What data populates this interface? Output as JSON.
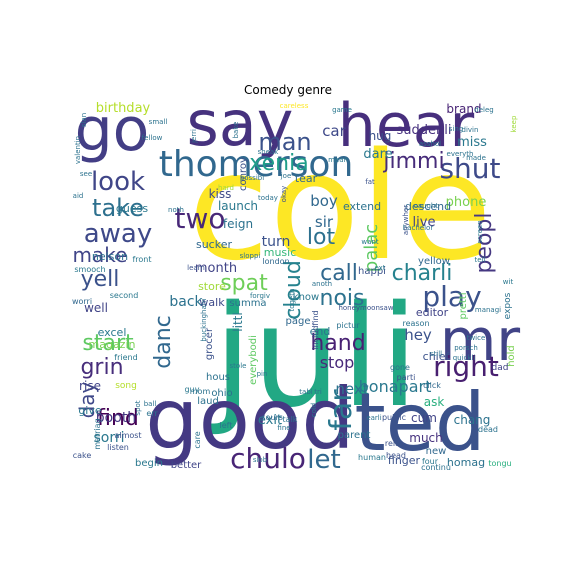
{
  "chart_data": {
    "type": "wordcloud",
    "title": "Comedy genre",
    "words": [
      {
        "text": "cole",
        "weight": 100,
        "color": "#fde725"
      },
      {
        "text": "juli",
        "weight": 96,
        "color": "#22a884"
      },
      {
        "text": "good",
        "weight": 70,
        "color": "#443983"
      },
      {
        "text": "ted",
        "weight": 62,
        "color": "#3b528b"
      },
      {
        "text": "mr",
        "weight": 48,
        "color": "#414487"
      },
      {
        "text": "say",
        "weight": 50,
        "color": "#46327e"
      },
      {
        "text": "hear",
        "weight": 48,
        "color": "#472f7d"
      },
      {
        "text": "go",
        "weight": 46,
        "color": "#433e85"
      },
      {
        "text": "thomerson",
        "weight": 30,
        "color": "#31688e"
      },
      {
        "text": "chulo",
        "weight": 24,
        "color": "#482576"
      },
      {
        "text": "let",
        "weight": 22,
        "color": "#31688e"
      },
      {
        "text": "far",
        "weight": 26,
        "color": "#2a788e"
      },
      {
        "text": "shut",
        "weight": 22,
        "color": "#3e4a89"
      },
      {
        "text": "right",
        "weight": 22,
        "color": "#481f70"
      },
      {
        "text": "play",
        "weight": 22,
        "color": "#3b528b"
      },
      {
        "text": "two",
        "weight": 24,
        "color": "#482878"
      },
      {
        "text": "look",
        "weight": 20,
        "color": "#404688"
      },
      {
        "text": "away",
        "weight": 20,
        "color": "#3e4989"
      },
      {
        "text": "take",
        "weight": 20,
        "color": "#2d708e"
      },
      {
        "text": "man",
        "weight": 20,
        "color": "#3b528b"
      },
      {
        "text": "xenia",
        "weight": 18,
        "color": "#1f9e89"
      },
      {
        "text": "jimmi",
        "weight": 18,
        "color": "#472c7a"
      },
      {
        "text": "peopl",
        "weight": 18,
        "color": "#453781"
      },
      {
        "text": "spat",
        "weight": 18,
        "color": "#6ece58"
      },
      {
        "text": "lot",
        "weight": 18,
        "color": "#2d708e"
      },
      {
        "text": "call",
        "weight": 18,
        "color": "#31688e"
      },
      {
        "text": "charli",
        "weight": 18,
        "color": "#26828e"
      },
      {
        "text": "nois",
        "weight": 18,
        "color": "#2c728e"
      },
      {
        "text": "cloud",
        "weight": 18,
        "color": "#26828e"
      },
      {
        "text": "hand",
        "weight": 18,
        "color": "#482173"
      },
      {
        "text": "danc",
        "weight": 18,
        "color": "#31688e"
      },
      {
        "text": "find",
        "weight": 18,
        "color": "#440154"
      },
      {
        "text": "grin",
        "weight": 18,
        "color": "#472d7b"
      },
      {
        "text": "start",
        "weight": 18,
        "color": "#5ec962"
      },
      {
        "text": "yell",
        "weight": 18,
        "color": "#3b528b"
      },
      {
        "text": "make",
        "weight": 16,
        "color": "#404588"
      },
      {
        "text": "day",
        "weight": 16,
        "color": "#3f4889"
      },
      {
        "text": "palac",
        "weight": 14,
        "color": "#5ec962"
      },
      {
        "text": "bonapart",
        "weight": 13,
        "color": "#2a788e"
      },
      {
        "text": "stop",
        "weight": 13,
        "color": "#482979"
      },
      {
        "text": "next",
        "weight": 13,
        "color": "#2c728e"
      },
      {
        "text": "sorri",
        "weight": 12,
        "color": "#2a788e"
      },
      {
        "text": "booth",
        "weight": 12,
        "color": "#453882"
      },
      {
        "text": "birthday",
        "weight": 11,
        "color": "#b5de2b"
      },
      {
        "text": "car",
        "weight": 12,
        "color": "#3e4989"
      },
      {
        "text": "dare",
        "weight": 11,
        "color": "#2a788e"
      },
      {
        "text": "suddenli",
        "weight": 11,
        "color": "#46307e"
      },
      {
        "text": "brand",
        "weight": 10,
        "color": "#482475"
      },
      {
        "text": "miss",
        "weight": 11,
        "color": "#2a788e"
      },
      {
        "text": "boy",
        "weight": 12,
        "color": "#31688e"
      },
      {
        "text": "sir",
        "weight": 12,
        "color": "#31688e"
      },
      {
        "text": "turn",
        "weight": 12,
        "color": "#3b528b"
      },
      {
        "text": "month",
        "weight": 11,
        "color": "#414487"
      },
      {
        "text": "phone",
        "weight": 11,
        "color": "#7ad151"
      },
      {
        "text": "live",
        "weight": 11,
        "color": "#414487"
      },
      {
        "text": "hey",
        "weight": 13,
        "color": "#3b528b"
      },
      {
        "text": "back",
        "weight": 12,
        "color": "#2c728e"
      },
      {
        "text": "ask",
        "weight": 10,
        "color": "#29af7f"
      },
      {
        "text": "cum",
        "weight": 10,
        "color": "#414487"
      },
      {
        "text": "much",
        "weight": 10,
        "color": "#46327e"
      },
      {
        "text": "exit",
        "weight": 11,
        "color": "#2a788e"
      },
      {
        "text": "chang",
        "weight": 10,
        "color": "#2c728e"
      },
      {
        "text": "hug",
        "weight": 10,
        "color": "#3b528b"
      },
      {
        "text": "launch",
        "weight": 10,
        "color": "#2a788e"
      },
      {
        "text": "kiss",
        "weight": 10,
        "color": "#3e4a89"
      },
      {
        "text": "tear",
        "weight": 9,
        "color": "#31688e"
      },
      {
        "text": "guess",
        "weight": 9,
        "color": "#2a788e"
      },
      {
        "text": "feign",
        "weight": 10,
        "color": "#2c728e"
      },
      {
        "text": "extend",
        "weight": 9,
        "color": "#2c728e"
      },
      {
        "text": "descend",
        "weight": 9,
        "color": "#31688e"
      },
      {
        "text": "nelson",
        "weight": 9,
        "color": "#2c728e"
      },
      {
        "text": "sucker",
        "weight": 9,
        "color": "#31688e"
      },
      {
        "text": "music",
        "weight": 8,
        "color": "#35b779"
      },
      {
        "text": "well",
        "weight": 10,
        "color": "#414487"
      },
      {
        "text": "excel",
        "weight": 9,
        "color": "#2a788e"
      },
      {
        "text": "store",
        "weight": 9,
        "color": "#a0da39"
      },
      {
        "text": "walk",
        "weight": 9,
        "color": "#3e4a89"
      },
      {
        "text": "summa",
        "weight": 8,
        "color": "#2c728e"
      },
      {
        "text": "page",
        "weight": 8,
        "color": "#31688e"
      },
      {
        "text": "know",
        "weight": 9,
        "color": "#2a788e"
      },
      {
        "text": "end",
        "weight": 9,
        "color": "#2c728e"
      },
      {
        "text": "editor",
        "weight": 9,
        "color": "#414487"
      },
      {
        "text": "chief",
        "weight": 9,
        "color": "#3b528b"
      },
      {
        "text": "rise",
        "weight": 10,
        "color": "#414487"
      },
      {
        "text": "magazin",
        "weight": 9,
        "color": "#7ad151"
      },
      {
        "text": "give",
        "weight": 9,
        "color": "#2a788e"
      },
      {
        "text": "laud",
        "weight": 8,
        "color": "#2c728e"
      },
      {
        "text": "hous",
        "weight": 8,
        "color": "#2c728e"
      },
      {
        "text": "ohio",
        "weight": 8,
        "color": "#2c728e"
      },
      {
        "text": "begin",
        "weight": 8,
        "color": "#2a788e"
      },
      {
        "text": "better",
        "weight": 8,
        "color": "#404588"
      },
      {
        "text": "finger",
        "weight": 9,
        "color": "#3b528b"
      },
      {
        "text": "homag",
        "weight": 9,
        "color": "#2c728e"
      },
      {
        "text": "new",
        "weight": 8,
        "color": "#31688e"
      },
      {
        "text": "parent",
        "weight": 8,
        "color": "#2c728e"
      },
      {
        "text": "yellow",
        "weight": 8,
        "color": "#31688e"
      },
      {
        "text": "littl",
        "weight": 10,
        "color": "#2a788e"
      },
      {
        "text": "everybodi",
        "weight": 8,
        "color": "#5ec962"
      },
      {
        "text": "grocer",
        "weight": 8,
        "color": "#3b528b"
      },
      {
        "text": "happi",
        "weight": 8,
        "color": "#3b528b"
      },
      {
        "text": "pretti",
        "weight": 8,
        "color": "#5ec962"
      },
      {
        "text": "hold",
        "weight": 8,
        "color": "#7ad151"
      },
      {
        "text": "expos",
        "weight": 7,
        "color": "#2c728e"
      },
      {
        "text": "conroy",
        "weight": 8,
        "color": "#3b528b"
      },
      {
        "text": "song",
        "weight": 7,
        "color": "#b5de2b"
      },
      {
        "text": "dad",
        "weight": 7,
        "color": "#414487"
      },
      {
        "text": "london",
        "weight": 6,
        "color": "#31688e"
      },
      {
        "text": "front",
        "weight": 6,
        "color": "#2a788e"
      },
      {
        "text": "smooch",
        "weight": 6,
        "color": "#2a788e"
      },
      {
        "text": "second",
        "weight": 6,
        "color": "#2a788e"
      },
      {
        "text": "worri",
        "weight": 6,
        "color": "#31688e"
      },
      {
        "text": "friend",
        "weight": 6,
        "color": "#2a788e"
      },
      {
        "text": "listen",
        "weight": 6,
        "color": "#3b528b"
      },
      {
        "text": "almost",
        "weight": 6,
        "color": "#3b528b"
      },
      {
        "text": "marriag",
        "weight": 6,
        "color": "#2c728e"
      },
      {
        "text": "cake",
        "weight": 6,
        "color": "#3b528b"
      },
      {
        "text": "err",
        "weight": 6,
        "color": "#2c728e"
      },
      {
        "text": "guy",
        "weight": 6,
        "color": "#2a788e"
      },
      {
        "text": "mom",
        "weight": 6,
        "color": "#2c728e"
      },
      {
        "text": "care",
        "weight": 6,
        "color": "#2c728e"
      },
      {
        "text": "left",
        "weight": 6,
        "color": "#2c728e"
      },
      {
        "text": "talk",
        "weight": 6,
        "color": "#2c728e"
      },
      {
        "text": "cours",
        "weight": 6,
        "color": "#31688e"
      },
      {
        "text": "public",
        "weight": 6,
        "color": "#3b528b"
      },
      {
        "text": "relat",
        "weight": 6,
        "color": "#3b528b"
      },
      {
        "text": "dead",
        "weight": 6,
        "color": "#2c728e"
      },
      {
        "text": "four",
        "weight": 6,
        "color": "#2a788e"
      },
      {
        "text": "tongu",
        "weight": 6,
        "color": "#29af7f"
      },
      {
        "text": "continu",
        "weight": 6,
        "color": "#2c728e"
      },
      {
        "text": "head",
        "weight": 6,
        "color": "#3b528b"
      },
      {
        "text": "gone",
        "weight": 6,
        "color": "#2c728e"
      },
      {
        "text": "click",
        "weight": 6,
        "color": "#31688e"
      },
      {
        "text": "reason",
        "weight": 6,
        "color": "#2c728e"
      },
      {
        "text": "parti",
        "weight": 6,
        "color": "#3b528b"
      },
      {
        "text": "human",
        "weight": 6,
        "color": "#2a788e"
      },
      {
        "text": "pictur",
        "weight": 6,
        "color": "#2c728e"
      },
      {
        "text": "includfind",
        "weight": 6,
        "color": "#3b528b"
      },
      {
        "text": "honeymoonsaw",
        "weight": 5,
        "color": "#3b528b"
      },
      {
        "text": "togeth",
        "weight": 5,
        "color": "#2a788e"
      },
      {
        "text": "forgiv",
        "weight": 5,
        "color": "#2a788e"
      },
      {
        "text": "learn",
        "weight": 5,
        "color": "#3b528b"
      },
      {
        "text": "sloppi",
        "weight": 5,
        "color": "#2c728e"
      },
      {
        "text": "buckingham",
        "weight": 5,
        "color": "#2c728e"
      },
      {
        "text": "stole",
        "weight": 5,
        "color": "#2a788e"
      },
      {
        "text": "pin",
        "weight": 5,
        "color": "#2a788e"
      },
      {
        "text": "tabl",
        "weight": 5,
        "color": "#2c728e"
      },
      {
        "text": "cold",
        "weight": 5,
        "color": "#2a788e"
      },
      {
        "text": "tri",
        "weight": 5,
        "color": "#2c728e"
      },
      {
        "text": "ext",
        "weight": 5,
        "color": "#2a788e"
      },
      {
        "text": "want",
        "weight": 5,
        "color": "#2a788e"
      },
      {
        "text": "anoth",
        "weight": 5,
        "color": "#2c728e"
      },
      {
        "text": "screen",
        "weight": 5,
        "color": "#2a788e"
      },
      {
        "text": "tell",
        "weight": 5,
        "color": "#2a788e"
      },
      {
        "text": "wit",
        "weight": 5,
        "color": "#2a788e"
      },
      {
        "text": "bachelor",
        "weight": 5,
        "color": "#2c728e"
      },
      {
        "text": "anywher",
        "weight": 5,
        "color": "#3b528b"
      },
      {
        "text": "caught",
        "weight": 5,
        "color": "#2c728e"
      },
      {
        "text": "fat",
        "weight": 5,
        "color": "#3b528b"
      },
      {
        "text": "still",
        "weight": 5,
        "color": "#2c728e"
      },
      {
        "text": "twice",
        "weight": 5,
        "color": "#2c728e"
      },
      {
        "text": "porsch",
        "weight": 5,
        "color": "#2c728e"
      },
      {
        "text": "quickli",
        "weight": 5,
        "color": "#2c728e"
      },
      {
        "text": "managi",
        "weight": 5,
        "color": "#2c728e"
      },
      {
        "text": "earli",
        "weight": 5,
        "color": "#2c728e"
      },
      {
        "text": "fine",
        "weight": 5,
        "color": "#2c728e"
      },
      {
        "text": "okay",
        "weight": 5,
        "color": "#3b528b"
      },
      {
        "text": "sneak",
        "weight": 5,
        "color": "#2c728e"
      },
      {
        "text": "joe",
        "weight": 5,
        "color": "#2c728e"
      },
      {
        "text": "today",
        "weight": 5,
        "color": "#2c728e"
      },
      {
        "text": "possibl",
        "weight": 5,
        "color": "#2c728e"
      },
      {
        "text": "hard",
        "weight": 5,
        "color": "#a0da39"
      },
      {
        "text": "noth",
        "weight": 5,
        "color": "#2c728e"
      },
      {
        "text": "mean",
        "weight": 5,
        "color": "#2a788e"
      },
      {
        "text": "everyth",
        "weight": 5,
        "color": "#2c728e"
      },
      {
        "text": "made",
        "weight": 5,
        "color": "#2c728e"
      },
      {
        "text": "asshol",
        "weight": 5,
        "color": "#2c728e"
      },
      {
        "text": "sing",
        "weight": 5,
        "color": "#2c728e"
      },
      {
        "text": "divin",
        "weight": 5,
        "color": "#2c728e"
      },
      {
        "text": "keep",
        "weight": 5,
        "color": "#a0da39"
      },
      {
        "text": "deleg",
        "weight": 5,
        "color": "#2c728e"
      },
      {
        "text": "game",
        "weight": 5,
        "color": "#2a788e"
      },
      {
        "text": "careless",
        "weight": 5,
        "color": "#fde725"
      },
      {
        "text": "small",
        "weight": 5,
        "color": "#2c728e"
      },
      {
        "text": "jerri",
        "weight": 5,
        "color": "#2c728e"
      },
      {
        "text": "bake",
        "weight": 5,
        "color": "#2c728e"
      },
      {
        "text": "slan",
        "weight": 5,
        "color": "#2c728e"
      },
      {
        "text": "valentin",
        "weight": 5,
        "color": "#2c728e"
      },
      {
        "text": "see",
        "weight": 5,
        "color": "#2c728e"
      },
      {
        "text": "aid",
        "weight": 5,
        "color": "#2c728e"
      },
      {
        "text": "fellow",
        "weight": 5,
        "color": "#2c728e"
      },
      {
        "text": "ball",
        "weight": 5,
        "color": "#2c728e"
      },
      {
        "text": "spot",
        "weight": 5,
        "color": "#2c728e"
      },
      {
        "text": "slob",
        "weight": 5,
        "color": "#2c728e"
      }
    ]
  }
}
